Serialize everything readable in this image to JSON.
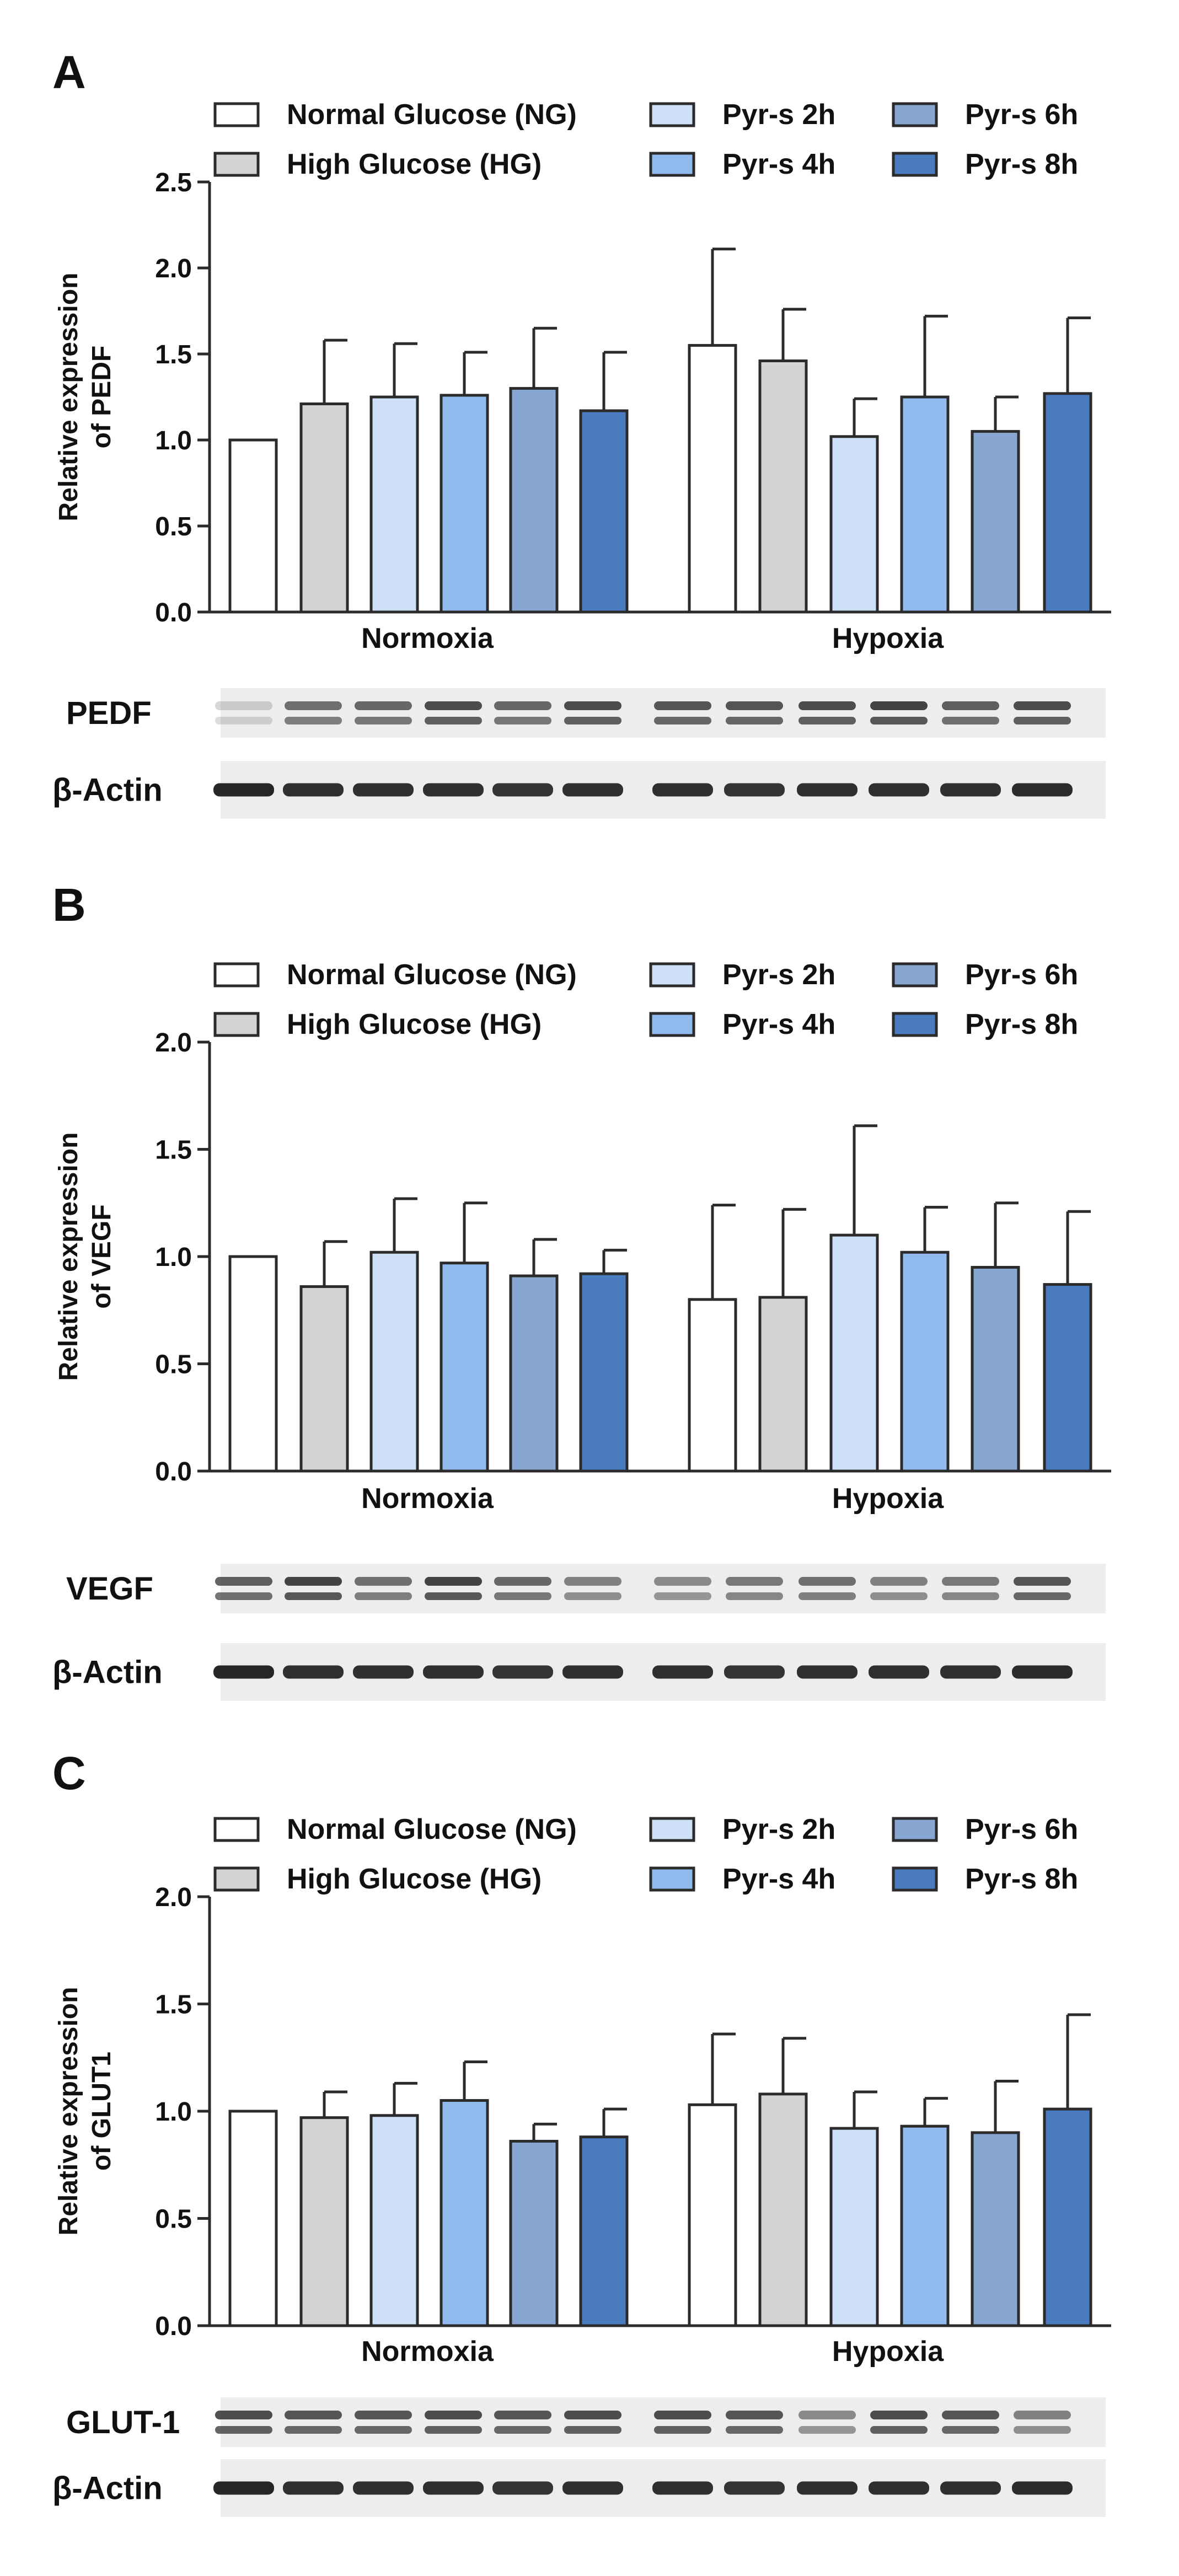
{
  "figure": {
    "colors": {
      "ng": "#ffffff",
      "hg": "#d4d4d4",
      "pyr2": "#cde0f7",
      "pyr4": "#91bbef",
      "pyr6": "#87a6d2",
      "pyr8": "#4a7bc0",
      "stroke": "#2b2b2b",
      "blot_bg": "#ededed",
      "band": "#1a1a1a"
    }
  },
  "chart_data": [
    {
      "panel_label": "A",
      "type": "bar",
      "ylabel_line1": "Relative expression",
      "ylabel_line2": "of PEDF",
      "ylim": [
        0,
        2.5
      ],
      "yticks": [
        "0.0",
        "0.5",
        "1.0",
        "1.5",
        "2.0",
        "2.5"
      ],
      "groups": [
        "Normoxia",
        "Hypoxia"
      ],
      "series": [
        {
          "name": "Normal Glucose (NG)",
          "color": "#ffffff",
          "values": [
            1.0,
            1.55
          ],
          "errors": [
            0.0,
            0.56
          ]
        },
        {
          "name": "High Glucose (HG)",
          "color": "#d4d4d4",
          "values": [
            1.21,
            1.46
          ],
          "errors": [
            0.37,
            0.3
          ]
        },
        {
          "name": "Pyr-s 2h",
          "color": "#cde0f7",
          "values": [
            1.25,
            1.02
          ],
          "errors": [
            0.31,
            0.22
          ]
        },
        {
          "name": "Pyr-s 4h",
          "color": "#91bbef",
          "values": [
            1.26,
            1.25
          ],
          "errors": [
            0.25,
            0.47
          ]
        },
        {
          "name": "Pyr-s 6h",
          "color": "#87a6d2",
          "values": [
            1.3,
            1.05
          ],
          "errors": [
            0.35,
            0.2
          ]
        },
        {
          "name": "Pyr-s 8h",
          "color": "#4a7bc0",
          "values": [
            1.17,
            1.27
          ],
          "errors": [
            0.34,
            0.44
          ]
        }
      ],
      "blots": [
        {
          "label": "PEDF",
          "intensity": [
            0.2,
            0.7,
            0.75,
            0.9,
            0.75,
            0.9,
            0.85,
            0.85,
            0.9,
            0.95,
            0.8,
            0.9
          ]
        },
        {
          "label": "β-Actin",
          "intensity": [
            0.95,
            0.9,
            0.9,
            0.9,
            0.88,
            0.9,
            0.9,
            0.88,
            0.9,
            0.9,
            0.9,
            0.92
          ]
        }
      ]
    },
    {
      "panel_label": "B",
      "type": "bar",
      "ylabel_line1": "Relative expression",
      "ylabel_line2": "of VEGF",
      "ylim": [
        0,
        2.0
      ],
      "yticks": [
        "0.0",
        "0.5",
        "1.0",
        "1.5",
        "2.0"
      ],
      "groups": [
        "Normoxia",
        "Hypoxia"
      ],
      "series": [
        {
          "name": "Normal Glucose (NG)",
          "color": "#ffffff",
          "values": [
            1.0,
            0.8
          ],
          "errors": [
            0.0,
            0.44
          ]
        },
        {
          "name": "High Glucose (HG)",
          "color": "#d4d4d4",
          "values": [
            0.86,
            0.81
          ],
          "errors": [
            0.21,
            0.41
          ]
        },
        {
          "name": "Pyr-s 2h",
          "color": "#cde0f7",
          "values": [
            1.02,
            1.1
          ],
          "errors": [
            0.25,
            0.51
          ]
        },
        {
          "name": "Pyr-s 4h",
          "color": "#91bbef",
          "values": [
            0.97,
            1.02
          ],
          "errors": [
            0.28,
            0.21
          ]
        },
        {
          "name": "Pyr-s 6h",
          "color": "#87a6d2",
          "values": [
            0.91,
            0.95
          ],
          "errors": [
            0.17,
            0.3
          ]
        },
        {
          "name": "Pyr-s 8h",
          "color": "#4a7bc0",
          "values": [
            0.92,
            0.87
          ],
          "errors": [
            0.11,
            0.34
          ]
        }
      ],
      "blots": [
        {
          "label": "VEGF",
          "intensity": [
            0.8,
            0.95,
            0.7,
            0.95,
            0.75,
            0.6,
            0.55,
            0.65,
            0.7,
            0.6,
            0.65,
            0.85
          ]
        },
        {
          "label": "β-Actin",
          "intensity": [
            0.95,
            0.9,
            0.9,
            0.9,
            0.88,
            0.9,
            0.9,
            0.88,
            0.9,
            0.9,
            0.9,
            0.92
          ]
        }
      ]
    },
    {
      "panel_label": "C",
      "type": "bar",
      "ylabel_line1": "Relative expression",
      "ylabel_line2": "of GLUT1",
      "ylim": [
        0,
        2.0
      ],
      "yticks": [
        "0.0",
        "0.5",
        "1.0",
        "1.5",
        "2.0"
      ],
      "groups": [
        "Normoxia",
        "Hypoxia"
      ],
      "series": [
        {
          "name": "Normal Glucose (NG)",
          "color": "#ffffff",
          "values": [
            1.0,
            1.03
          ],
          "errors": [
            0.0,
            0.33
          ]
        },
        {
          "name": "High Glucose (HG)",
          "color": "#d4d4d4",
          "values": [
            0.97,
            1.08
          ],
          "errors": [
            0.12,
            0.26
          ]
        },
        {
          "name": "Pyr-s 2h",
          "color": "#cde0f7",
          "values": [
            0.98,
            0.92
          ],
          "errors": [
            0.15,
            0.17
          ]
        },
        {
          "name": "Pyr-s 4h",
          "color": "#91bbef",
          "values": [
            1.05,
            0.93
          ],
          "errors": [
            0.18,
            0.13
          ]
        },
        {
          "name": "Pyr-s 6h",
          "color": "#87a6d2",
          "values": [
            0.86,
            0.9
          ],
          "errors": [
            0.08,
            0.24
          ]
        },
        {
          "name": "Pyr-s 8h",
          "color": "#4a7bc0",
          "values": [
            0.88,
            1.01
          ],
          "errors": [
            0.13,
            0.44
          ]
        }
      ],
      "blots": [
        {
          "label": "GLUT-1",
          "intensity": [
            0.9,
            0.85,
            0.85,
            0.9,
            0.85,
            0.9,
            0.9,
            0.85,
            0.55,
            0.9,
            0.85,
            0.6
          ]
        },
        {
          "label": "β-Actin",
          "intensity": [
            0.95,
            0.9,
            0.9,
            0.9,
            0.88,
            0.9,
            0.9,
            0.88,
            0.9,
            0.9,
            0.9,
            0.92
          ]
        }
      ]
    }
  ]
}
